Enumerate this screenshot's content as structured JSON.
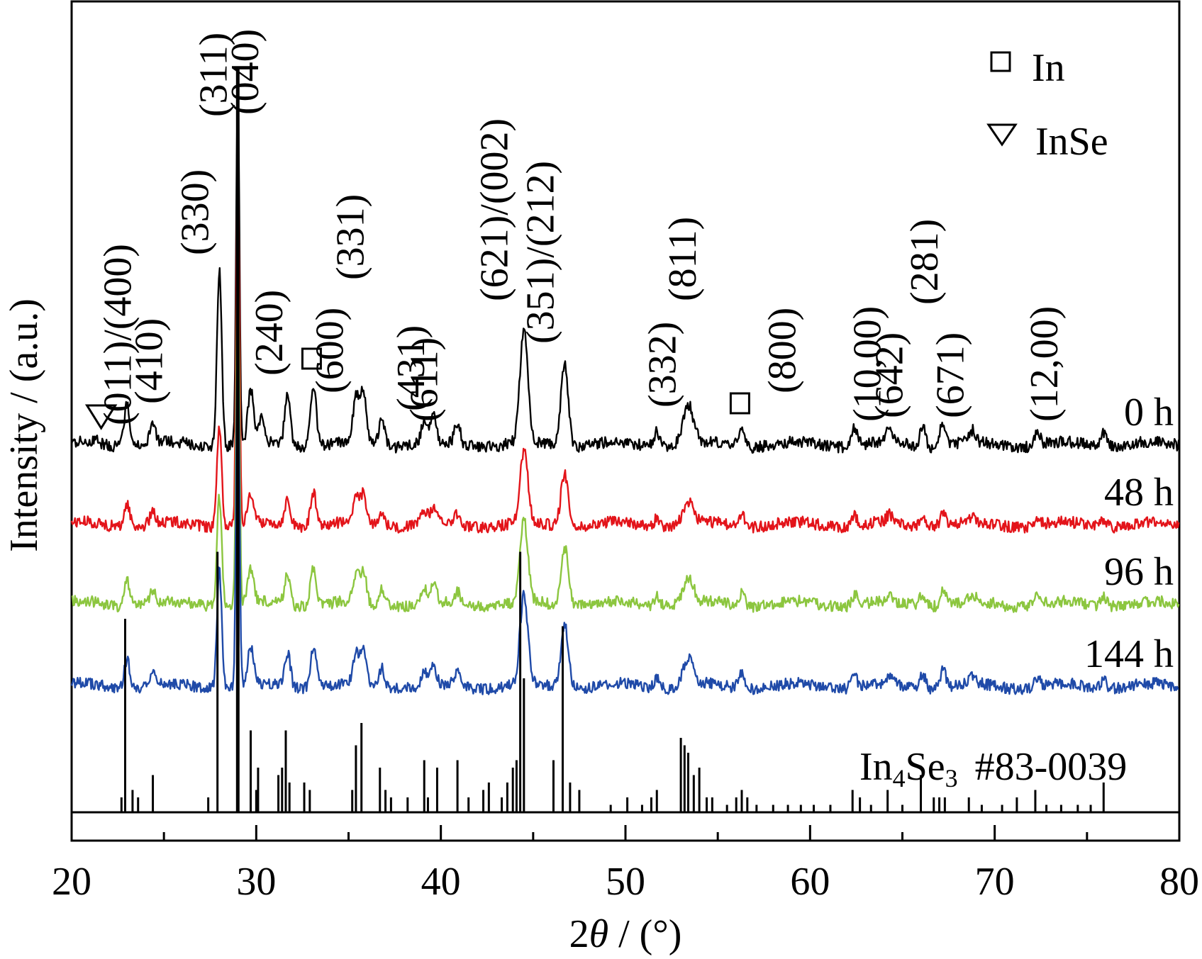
{
  "chart_data": {
    "type": "line",
    "xlabel_main": "2",
    "xlabel_theta": "θ",
    "xlabel_rest": " / (°)",
    "ylabel": "Intensity / (a.u.)",
    "xlim": [
      20,
      80
    ],
    "xticks": [
      "20",
      "30",
      "40",
      "50",
      "60",
      "70",
      "80"
    ],
    "legend": [
      {
        "symbol": "square",
        "label": "In"
      },
      {
        "symbol": "triangle-down",
        "label": "InSe"
      }
    ],
    "series": [
      {
        "name": "0 h",
        "color": "#000000",
        "peak_scale": 1.0,
        "peaks_x": [
          21.3,
          23.0,
          24.4,
          28.0,
          29.0,
          29.7,
          30.3,
          31.7,
          33.1,
          35.4,
          35.8,
          36.8,
          39.1,
          39.6,
          40.9,
          44.5,
          46.7,
          51.7,
          53.4,
          56.3,
          62.4,
          64.3,
          66.1,
          67.2,
          68.8,
          72.3,
          75.9
        ]
      },
      {
        "name": "48 h",
        "color": "#e3141a",
        "peak_scale": 0.55,
        "peaks_x": [
          23.0,
          24.4,
          28.0,
          29.0,
          29.7,
          31.7,
          33.1,
          35.4,
          35.8,
          36.8,
          39.1,
          39.6,
          40.9,
          44.5,
          46.7,
          51.7,
          53.4,
          56.3,
          62.4,
          64.3,
          66.1,
          67.2,
          68.8,
          72.3,
          75.9
        ]
      },
      {
        "name": "96 h",
        "color": "#8cc63f",
        "peak_scale": 0.62,
        "peaks_x": [
          23.0,
          24.4,
          28.0,
          29.0,
          29.7,
          31.7,
          33.1,
          35.4,
          35.8,
          36.8,
          39.1,
          39.6,
          40.9,
          44.5,
          46.7,
          51.7,
          53.4,
          56.3,
          62.4,
          64.3,
          66.1,
          67.2,
          68.8,
          72.3,
          75.9
        ]
      },
      {
        "name": "144 h",
        "color": "#1f4aa8",
        "peak_scale": 0.68,
        "peaks_x": [
          23.0,
          24.4,
          28.0,
          29.0,
          29.7,
          31.7,
          33.1,
          35.4,
          35.8,
          36.8,
          39.1,
          39.6,
          40.9,
          44.5,
          46.7,
          51.7,
          53.4,
          56.3,
          62.4,
          64.3,
          66.1,
          67.2,
          68.8,
          72.3,
          75.9
        ]
      }
    ],
    "reference": {
      "label_main": "In",
      "label_sub1": "4",
      "label_mid": "Se",
      "label_sub2": "3",
      "label_card": "#83-0039",
      "color": "#000000",
      "sticks": [
        {
          "x": 22.7,
          "i": 2
        },
        {
          "x": 22.9,
          "i": 26
        },
        {
          "x": 23.3,
          "i": 3
        },
        {
          "x": 23.6,
          "i": 2
        },
        {
          "x": 24.4,
          "i": 5
        },
        {
          "x": 27.4,
          "i": 2
        },
        {
          "x": 27.9,
          "i": 35
        },
        {
          "x": 29.0,
          "i": 100
        },
        {
          "x": 29.7,
          "i": 11
        },
        {
          "x": 30.0,
          "i": 3
        },
        {
          "x": 30.1,
          "i": 6
        },
        {
          "x": 31.2,
          "i": 5
        },
        {
          "x": 31.4,
          "i": 6
        },
        {
          "x": 31.6,
          "i": 11
        },
        {
          "x": 31.8,
          "i": 4
        },
        {
          "x": 32.6,
          "i": 4
        },
        {
          "x": 32.9,
          "i": 3
        },
        {
          "x": 35.2,
          "i": 3
        },
        {
          "x": 35.4,
          "i": 9
        },
        {
          "x": 35.7,
          "i": 12
        },
        {
          "x": 36.7,
          "i": 6
        },
        {
          "x": 37.0,
          "i": 3
        },
        {
          "x": 37.3,
          "i": 2
        },
        {
          "x": 38.2,
          "i": 2
        },
        {
          "x": 39.1,
          "i": 7
        },
        {
          "x": 39.3,
          "i": 2
        },
        {
          "x": 39.8,
          "i": 6
        },
        {
          "x": 40.9,
          "i": 7
        },
        {
          "x": 41.5,
          "i": 2
        },
        {
          "x": 42.3,
          "i": 3
        },
        {
          "x": 42.6,
          "i": 4
        },
        {
          "x": 43.3,
          "i": 2
        },
        {
          "x": 43.6,
          "i": 4
        },
        {
          "x": 43.9,
          "i": 6
        },
        {
          "x": 44.1,
          "i": 7
        },
        {
          "x": 44.3,
          "i": 35
        },
        {
          "x": 44.5,
          "i": 18
        },
        {
          "x": 46.1,
          "i": 7
        },
        {
          "x": 46.6,
          "i": 25
        },
        {
          "x": 47.0,
          "i": 4
        },
        {
          "x": 47.5,
          "i": 3
        },
        {
          "x": 49.2,
          "i": 1
        },
        {
          "x": 50.1,
          "i": 2
        },
        {
          "x": 50.9,
          "i": 1
        },
        {
          "x": 51.4,
          "i": 2
        },
        {
          "x": 51.7,
          "i": 3
        },
        {
          "x": 53.0,
          "i": 10
        },
        {
          "x": 53.2,
          "i": 9
        },
        {
          "x": 53.4,
          "i": 8
        },
        {
          "x": 53.7,
          "i": 5
        },
        {
          "x": 54.0,
          "i": 6
        },
        {
          "x": 54.4,
          "i": 2
        },
        {
          "x": 54.7,
          "i": 2
        },
        {
          "x": 55.5,
          "i": 1
        },
        {
          "x": 56.0,
          "i": 2
        },
        {
          "x": 56.3,
          "i": 3
        },
        {
          "x": 56.6,
          "i": 2
        },
        {
          "x": 57.1,
          "i": 1
        },
        {
          "x": 58.0,
          "i": 1
        },
        {
          "x": 58.8,
          "i": 1
        },
        {
          "x": 59.5,
          "i": 1
        },
        {
          "x": 60.2,
          "i": 1
        },
        {
          "x": 61.1,
          "i": 1
        },
        {
          "x": 62.3,
          "i": 3
        },
        {
          "x": 62.7,
          "i": 2
        },
        {
          "x": 63.3,
          "i": 1
        },
        {
          "x": 64.2,
          "i": 3
        },
        {
          "x": 65.0,
          "i": 1
        },
        {
          "x": 66.0,
          "i": 5
        },
        {
          "x": 66.7,
          "i": 2
        },
        {
          "x": 67.0,
          "i": 2
        },
        {
          "x": 67.3,
          "i": 2
        },
        {
          "x": 68.6,
          "i": 2
        },
        {
          "x": 69.3,
          "i": 1
        },
        {
          "x": 70.4,
          "i": 1
        },
        {
          "x": 71.2,
          "i": 2
        },
        {
          "x": 72.2,
          "i": 3
        },
        {
          "x": 72.8,
          "i": 1
        },
        {
          "x": 73.6,
          "i": 1
        },
        {
          "x": 74.5,
          "i": 1
        },
        {
          "x": 75.2,
          "i": 1
        },
        {
          "x": 75.9,
          "i": 4
        }
      ]
    },
    "peak_labels": [
      {
        "text": "(011)/(400)",
        "x": 23.2
      },
      {
        "text": "(410)",
        "x": 24.9
      },
      {
        "text": "(330)",
        "x": 27.4
      },
      {
        "text": "(311)",
        "x": 28.4
      },
      {
        "text": "(040)",
        "x": 30.1
      },
      {
        "text": "(240)",
        "x": 31.4
      },
      {
        "text": "(600)",
        "x": 34.7
      },
      {
        "text": "(331)",
        "x": 35.8
      },
      {
        "text": "(431)",
        "x": 39.1
      },
      {
        "text": "(611)",
        "x": 39.8
      },
      {
        "text": "(621)/(002)",
        "x": 43.6
      },
      {
        "text": "(351)/(212)",
        "x": 46.1
      },
      {
        "text": "(332)",
        "x": 52.7
      },
      {
        "text": "(811)",
        "x": 53.8
      },
      {
        "text": "(800)",
        "x": 59.2
      },
      {
        "text": "(10,00)",
        "x": 63.8
      },
      {
        "text": "(642)",
        "x": 65.0
      },
      {
        "text": "(281)",
        "x": 66.9
      },
      {
        "text": "(671)",
        "x": 68.3
      },
      {
        "text": "(12,00)",
        "x": 73.4
      }
    ],
    "phase_markers": [
      {
        "symbol": "triangle-down",
        "x": 21.6
      },
      {
        "symbol": "square",
        "x": 33.0
      },
      {
        "symbol": "square",
        "x": 56.2
      }
    ]
  }
}
